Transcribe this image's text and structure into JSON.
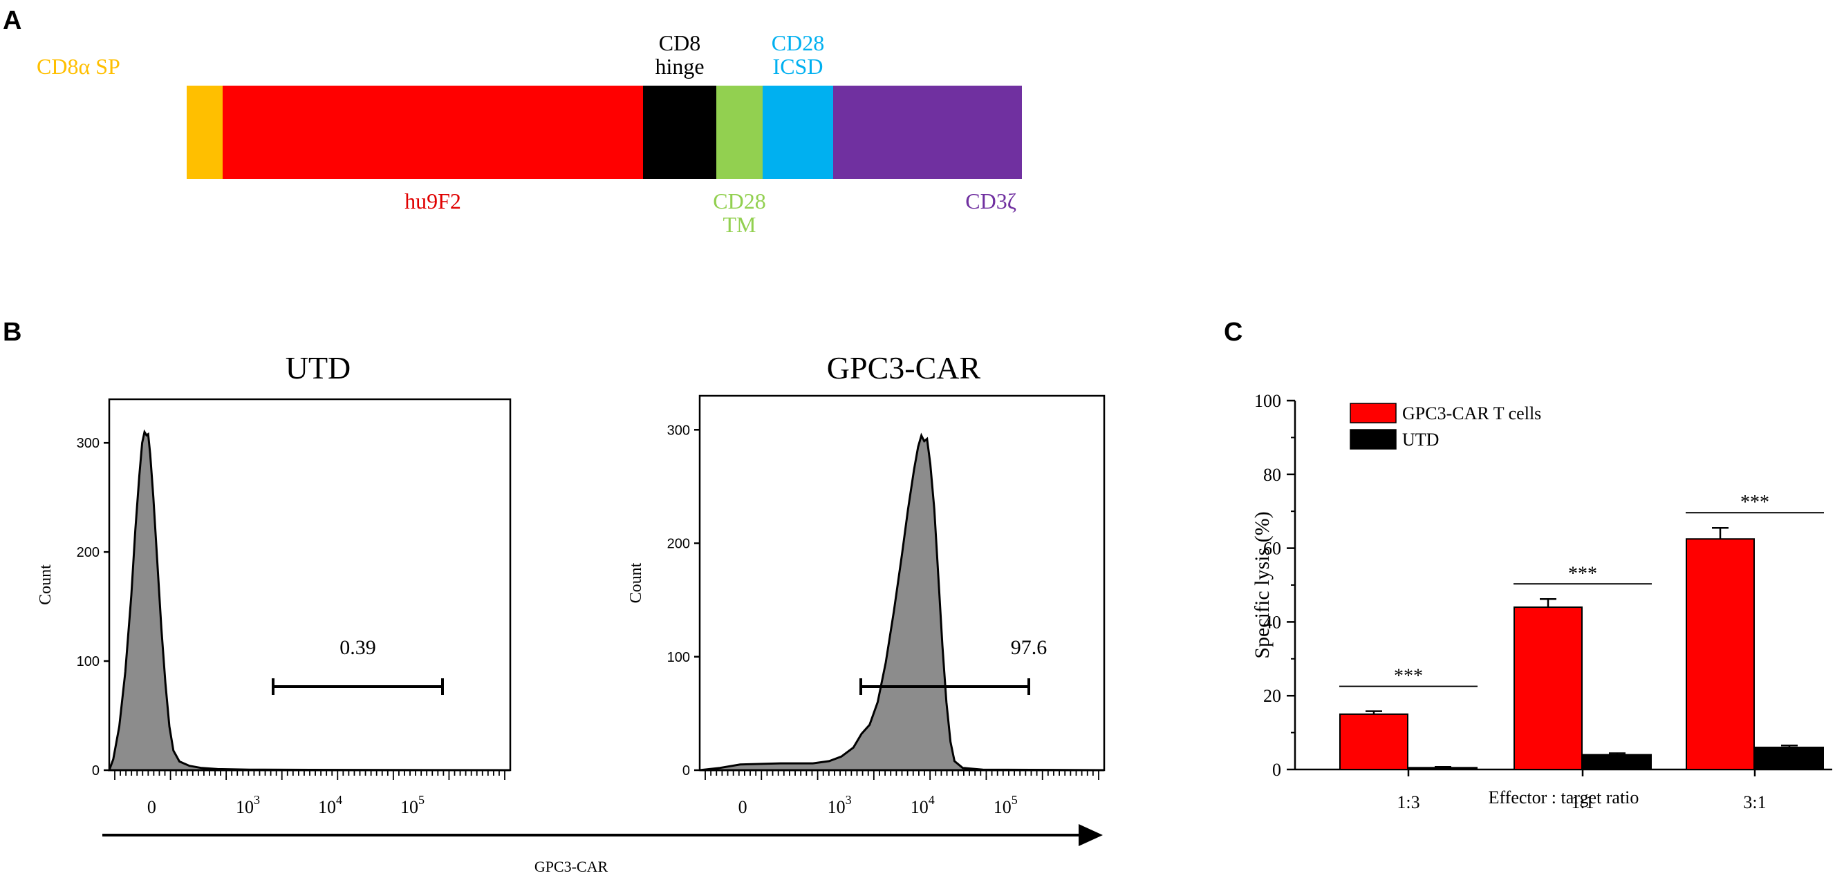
{
  "panels": {
    "a": {
      "letter": "A"
    },
    "b": {
      "letter": "B"
    },
    "c": {
      "letter": "C"
    }
  },
  "construct": {
    "segments": [
      {
        "name": "CD8α SP",
        "color": "#FFBF00",
        "label_lines": [
          "CD8α SP"
        ],
        "label_pos": "left",
        "label_color": "#FFBF00"
      },
      {
        "name": "hu9F2",
        "color": "#FF0000",
        "label_lines": [
          "hu9F2"
        ],
        "label_pos": "below",
        "label_color": "#E00000"
      },
      {
        "name": "CD8 hinge",
        "color": "#000000",
        "label_lines": [
          "CD8",
          "hinge"
        ],
        "label_pos": "above",
        "label_color": "#000000"
      },
      {
        "name": "CD28 TM",
        "color": "#92D050",
        "label_lines": [
          "CD28",
          "TM"
        ],
        "label_pos": "below",
        "label_color": "#92D050"
      },
      {
        "name": "CD28 ICSD",
        "color": "#00B0F0",
        "label_lines": [
          "CD28",
          "ICSD"
        ],
        "label_pos": "above",
        "label_color": "#00B0F0"
      },
      {
        "name": "CD3ζ",
        "color": "#7030A0",
        "label_lines": [
          "CD3ζ"
        ],
        "label_pos": "below_right",
        "label_color": "#7030A0"
      }
    ]
  },
  "flow": {
    "x_axis_label": "GPC3-CAR",
    "y_axis_label": "Count",
    "x_ticks": [
      {
        "label": "0",
        "exp": ""
      },
      {
        "label": "10",
        "exp": "3"
      },
      {
        "label": "10",
        "exp": "4"
      },
      {
        "label": "10",
        "exp": "5"
      }
    ],
    "plots": [
      {
        "title": "UTD",
        "gate_value": "0.39",
        "y_ticks": [
          "0",
          "100",
          "200",
          "300"
        ],
        "ymax": 340,
        "peak_count": 310
      },
      {
        "title": "GPC3-CAR",
        "gate_value": "97.6",
        "y_ticks": [
          "0",
          "100",
          "200",
          "300"
        ],
        "ymax": 330,
        "peak_count": 295
      }
    ]
  },
  "chart_data": {
    "type": "bar",
    "title": "",
    "xlabel": "Effector : target ratio",
    "ylabel": "Specific lysis (%)",
    "ylim": [
      0,
      100
    ],
    "yticks": [
      "0",
      "20",
      "40",
      "60",
      "80",
      "100"
    ],
    "categories": [
      "1:3",
      "1:1",
      "3:1"
    ],
    "series": [
      {
        "name": "GPC3-CAR T cells",
        "color": "#FF0000",
        "values": [
          15,
          44,
          62.5
        ],
        "errors": [
          0.8,
          2.2,
          3
        ]
      },
      {
        "name": "UTD",
        "color": "#000000",
        "values": [
          0.5,
          4,
          6
        ],
        "errors": [
          0.2,
          0.4,
          0.5
        ]
      }
    ],
    "significance": [
      "***",
      "***",
      "***"
    ],
    "legend_position": "top-left"
  }
}
